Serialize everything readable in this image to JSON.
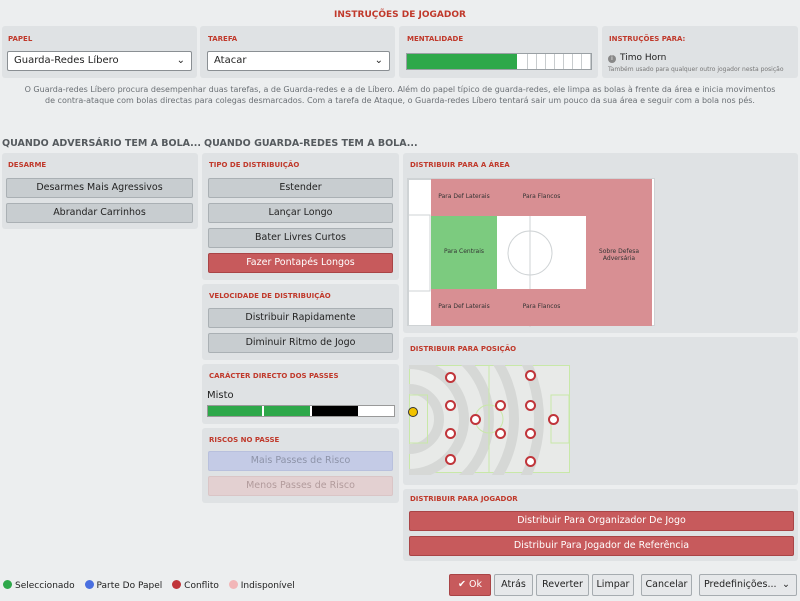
{
  "title": "INSTRUÇÕES DE JOGADOR",
  "role": {
    "label": "PAPEL",
    "value": "Guarda-Redes Líbero"
  },
  "duty": {
    "label": "TAREFA",
    "value": "Atacar"
  },
  "mentality": {
    "label": "MENTALIDADE",
    "level": 0.6
  },
  "instructions_for": {
    "label": "INSTRUÇÕES PARA:",
    "player": "Timo Horn",
    "note": "Também usado para qualquer outro jogador nesta posição"
  },
  "description_line1": "O Guarda-redes Líbero procura desempenhar duas tarefas, a de Guarda-redes e a de Líbero. Além do papel típico de guarda-redes, ele limpa as bolas à frente da área e inicia movimentos",
  "description_line2": "de contra-ataque com bolas directas para colegas desmarcados. Com a tarefa de Ataque, o Guarda-redes Líbero tentará sair um pouco da sua área e seguir com a bola nos pés.",
  "opp_header": "QUANDO ADVERSÁRIO TEM A BOLA...",
  "gk_header": "QUANDO GUARDA-REDES TEM A BOLA...",
  "tackling": {
    "label": "DESARME",
    "b1": "Desarmes Mais Agressivos",
    "b2": "Abrandar Carrinhos"
  },
  "distribution_type": {
    "label": "TIPO DE DISTRIBUIÇÃO",
    "b1": "Estender",
    "b2": "Lançar Longo",
    "b3": "Bater Livres Curtos",
    "b4": "Fazer Pontapés Longos"
  },
  "distribution_speed": {
    "label": "VELOCIDADE DE DISTRIBUIÇÃO",
    "b1": "Distribuir Rapidamente",
    "b2": "Diminuir Ritmo de Jogo"
  },
  "passing_directness": {
    "label": "CARÁCTER DIRECTO DOS PASSES",
    "value": "Misto"
  },
  "passing_risk": {
    "label": "RISCOS NO PASSE",
    "b1": "Mais Passes de Risco",
    "b2": "Menos Passes de Risco"
  },
  "area": {
    "label": "DISTRIBUIR PARA A ÁREA",
    "def_laterais": "Para Def Laterais",
    "flancos": "Para Flancos",
    "centrais": "Para Centrais",
    "sobre_defesa": "Sobre Defesa Adversária"
  },
  "position": {
    "label": "DISTRIBUIR PARA POSIÇÃO"
  },
  "player_dist": {
    "label": "DISTRIBUIR PARA JOGADOR",
    "b1": "Distribuir Para Organizador De Jogo",
    "b2": "Distribuir Para Jogador de Referência"
  },
  "legend": {
    "selected": "Seleccionado",
    "role_part": "Parte Do Papel",
    "conflict": "Conflito",
    "unavailable": "Indisponível"
  },
  "footer": {
    "ok": "Ok",
    "back": "Atrás",
    "revert": "Reverter",
    "clear": "Limpar",
    "cancel": "Cancelar",
    "presets": "Predefinições..."
  },
  "colors": {
    "accent": "#c0392b",
    "selected": "#2ea84a",
    "role_part": "#4a6fe0",
    "conflict": "#c0353a",
    "unavailable": "#f2b6b8"
  }
}
